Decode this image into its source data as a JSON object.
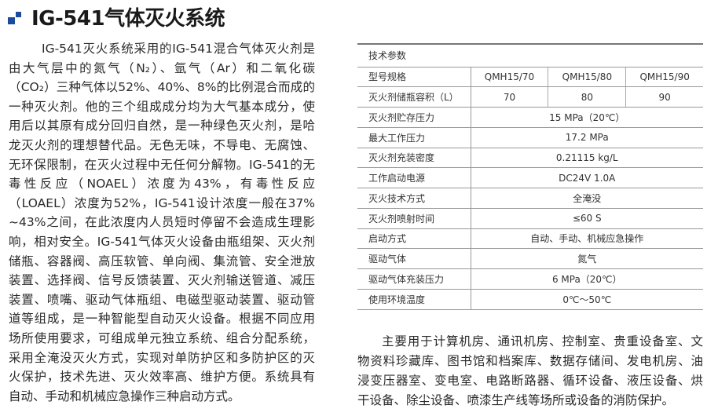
{
  "title": "IG-541气体灭火系统",
  "colors": {
    "accent": "#1c4b9c"
  },
  "title_icon": "blue-squares-icon",
  "intro_lines": [
    "IG-541灭火系统采用的IG-541混合气体灭火剂是",
    "由大气层中的氮气（N₂）、氩气（Ar）和二氧化碳",
    "（CO₂）三种气体以52%、40%、8%的比例混合而成的",
    "一种灭火剂。他的三个组成成分均为大气基本成分，使",
    "用后以其原有成分回归自然，是一种绿色灭火剂，是哈",
    "龙灭火剂的理想替代品。无色无味，不导电、无腐蚀、",
    "无环保限制，在灭火过程中无任何分解物。IG-541的无",
    "毒性反应（NOAEL）浓度为43%，有毒性反应",
    "（LOAEL）浓度为52%，IG-541设计浓度一般在37%",
    "~43%之间，在此浓度内人员短时停留不会造成生理影",
    "响，相对安全。IG-541气体灭火设备由瓶组架、灭火剂",
    "储瓶、容器阀、高压软管、单向阀、集流管、安全泄放",
    "装置、选择阀、信号反馈装置、灭火剂输送管道、减压",
    "装置、喷嘴、驱动气体瓶组、电磁型驱动装置、驱动管",
    "道等组成，是一种智能型自动灭火设备。根据不同应用",
    "场所使用要求，可组成单元独立系统、组合分配系统，",
    "采用全淹没灭火方式，实现对单防护区和多防护区的灭",
    "火保护，技术先进、灭火效率高、维护方便。系统具有",
    "自动、手动和机械应急操作三种启动方式。"
  ],
  "table": {
    "header": "技术参数",
    "model_label": "型号规格",
    "models": [
      "QMH15/70",
      "QMH15/80",
      "QMH15/90"
    ],
    "volume_label": "灭火剂储瓶容积（L）",
    "volumes": [
      "70",
      "80",
      "90"
    ],
    "rows": [
      {
        "label": "灭火剂贮存压力",
        "value": "15 MPa（20℃）"
      },
      {
        "label": "最大工作压力",
        "value": "17.2 MPa"
      },
      {
        "label": "灭火剂充装密度",
        "value": "0.21115 kg/L"
      },
      {
        "label": "工作启动电源",
        "value": "DC24V 1.0A"
      },
      {
        "label": "灭火技术方式",
        "value": "全淹没"
      },
      {
        "label": "灭火剂喷射时间",
        "value": "≤60 S"
      },
      {
        "label": "启动方式",
        "value": "自动、手动、机械应急操作"
      },
      {
        "label": "驱动气体",
        "value": "氮气"
      },
      {
        "label": "驱动气体充装压力",
        "value": "6 MPa（20℃）"
      },
      {
        "label": "使用环境温度",
        "value": "0℃～50℃"
      }
    ]
  },
  "usage_lines": [
    "主要用于计算机房、通讯机房、控制室、贵重设备室、文",
    "物资料珍藏库、图书馆和档案库、数据存储间、发电机房、油",
    "浸变压器室、变电室、电路断路器、循环设备、液压设备、烘",
    "干设备、除尘设备、喷漆生产线等场所或设备的消防保护。"
  ]
}
